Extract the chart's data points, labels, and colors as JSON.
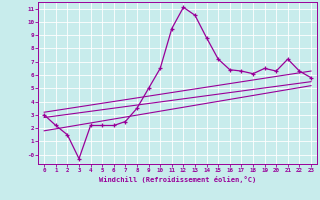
{
  "xlabel": "Windchill (Refroidissement éolien,°C)",
  "background_color": "#c8ecec",
  "line_color": "#990099",
  "xlim": [
    -0.5,
    23.5
  ],
  "ylim": [
    -0.7,
    11.5
  ],
  "x_ticks": [
    0,
    1,
    2,
    3,
    4,
    5,
    6,
    7,
    8,
    9,
    10,
    11,
    12,
    13,
    14,
    15,
    16,
    17,
    18,
    19,
    20,
    21,
    22,
    23
  ],
  "y_ticks": [
    0,
    1,
    2,
    3,
    4,
    5,
    6,
    7,
    8,
    9,
    10,
    11
  ],
  "y_tick_labels": [
    "-0",
    "1",
    "2",
    "3",
    "4",
    "5",
    "6",
    "7",
    "8",
    "9",
    "10",
    "11"
  ],
  "main_line_x": [
    0,
    1,
    2,
    3,
    4,
    5,
    6,
    7,
    8,
    9,
    10,
    11,
    12,
    13,
    14,
    15,
    16,
    17,
    18,
    19,
    20,
    21,
    22,
    23
  ],
  "main_line_y": [
    3.0,
    2.2,
    1.5,
    -0.3,
    2.2,
    2.2,
    2.2,
    2.5,
    3.5,
    5.0,
    6.5,
    9.5,
    11.1,
    10.5,
    8.8,
    7.2,
    6.4,
    6.3,
    6.1,
    6.5,
    6.3,
    7.2,
    6.3,
    5.8
  ],
  "reg_line1_x": [
    0,
    23
  ],
  "reg_line1_y": [
    2.8,
    5.5
  ],
  "reg_line2_x": [
    0,
    23
  ],
  "reg_line2_y": [
    3.2,
    6.3
  ],
  "reg_line3_x": [
    0,
    23
  ],
  "reg_line3_y": [
    1.8,
    5.2
  ]
}
